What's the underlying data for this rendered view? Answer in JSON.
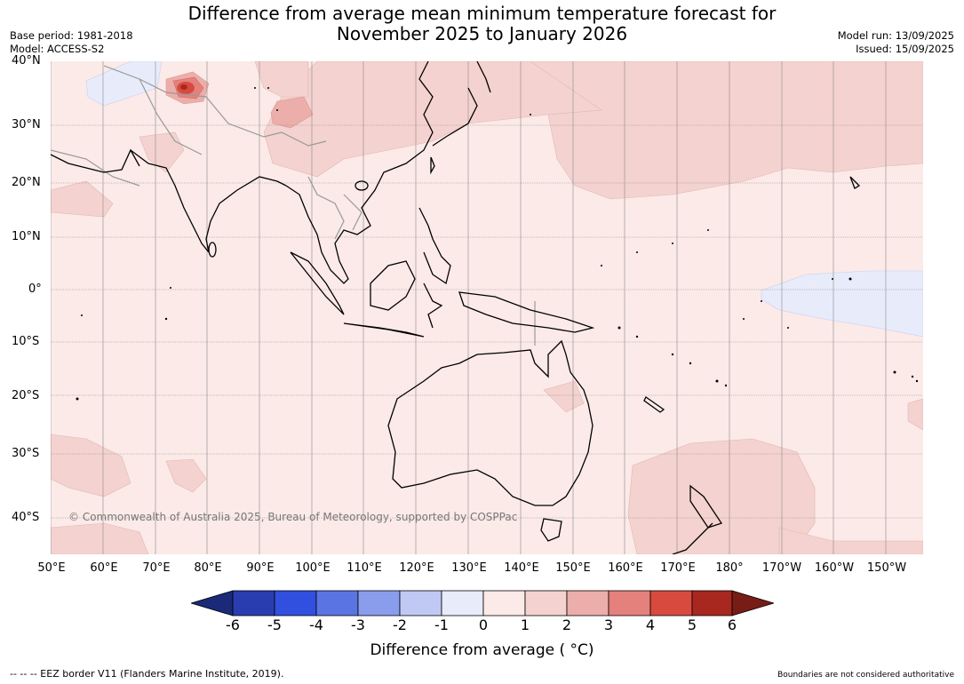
{
  "header": {
    "title_line1": "Difference from average mean minimum temperature forecast for",
    "title_line2": "November 2025 to January 2026",
    "base_period": "Base period: 1981-2018",
    "model": "Model: ACCESS-S2",
    "model_run": "Model run: 13/09/2025",
    "issued": "Issued: 15/09/2025"
  },
  "map": {
    "lat_labels": [
      "40°N",
      "30°N",
      "20°N",
      "10°N",
      "0°",
      "10°S",
      "20°S",
      "30°S",
      "40°S"
    ],
    "lon_labels": [
      "50°E",
      "60°E",
      "70°E",
      "80°E",
      "90°E",
      "100°E",
      "110°E",
      "120°E",
      "130°E",
      "140°E",
      "150°E",
      "160°E",
      "170°E",
      "180°",
      "170°W",
      "160°W",
      "150°W"
    ],
    "copyright": "© Commonwealth of Australia 2025, Bureau of Meteorology, supported by COSPPac",
    "colors": {
      "background_anomaly_0_1": "#fbeae8",
      "anomaly_1_2": "#f4d2cf",
      "anomaly_2_3": "#ecaeaa",
      "anomaly_3_4": "#e5817c",
      "anomaly_4_5": "#d94a3e",
      "anomaly_neg1_0": "#e8ebfa",
      "coastline": "#000000",
      "borders": "#999999",
      "grid": "#888888"
    }
  },
  "colorbar": {
    "ticks": [
      "-6",
      "-5",
      "-4",
      "-3",
      "-2",
      "-1",
      "0",
      "1",
      "2",
      "3",
      "4",
      "5",
      "6"
    ],
    "colors": [
      "#1a2a78",
      "#2a3db0",
      "#3150e0",
      "#5a74e2",
      "#8a9ded",
      "#c0c8f4",
      "#e8ebfa",
      "#fbeae8",
      "#f4d2cf",
      "#ecaeaa",
      "#e5817c",
      "#d94a3e",
      "#a8281f",
      "#781c16"
    ],
    "label": "Difference from average ( °C)"
  },
  "footer": {
    "eez": "--  --  -- EEZ border V11 (Flanders Marine Institute, 2019).",
    "disclaimer": "Boundaries are not considered authoritative"
  }
}
